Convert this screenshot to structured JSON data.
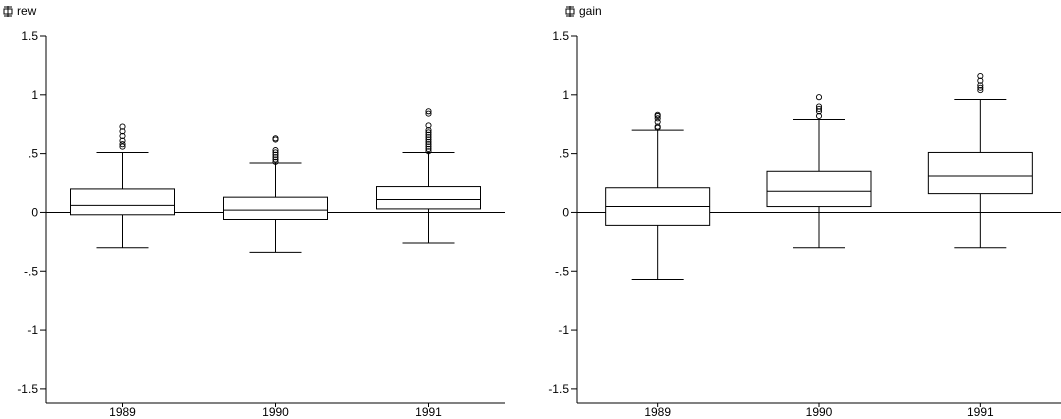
{
  "chart_data": [
    {
      "type": "box",
      "title": "rew",
      "title_icon": "box-plot-legend-icon",
      "categories": [
        "1989",
        "1990",
        "1991"
      ],
      "yticks": [
        "1.5",
        "1",
        ".5",
        "0",
        "-.5",
        "-1",
        "-1.5"
      ],
      "ytick_values": [
        1.5,
        1,
        0.5,
        0,
        -0.5,
        -1,
        -1.5
      ],
      "ylim": [
        -1.62,
        1.5
      ],
      "reference_line": 0,
      "boxes": [
        {
          "category": "1989",
          "whisker_low": -0.3,
          "q1": -0.02,
          "median": 0.06,
          "q3": 0.2,
          "whisker_high": 0.51,
          "outliers": [
            0.56,
            0.58,
            0.61,
            0.65,
            0.69,
            0.73
          ]
        },
        {
          "category": "1990",
          "whisker_low": -0.34,
          "q1": -0.06,
          "median": 0.02,
          "q3": 0.13,
          "whisker_high": 0.42,
          "outliers": [
            0.43,
            0.45,
            0.47,
            0.49,
            0.51,
            0.53,
            0.62,
            0.63
          ]
        },
        {
          "category": "1991",
          "whisker_low": -0.26,
          "q1": 0.03,
          "median": 0.11,
          "q3": 0.22,
          "whisker_high": 0.51,
          "outliers": [
            0.52,
            0.54,
            0.56,
            0.58,
            0.6,
            0.62,
            0.64,
            0.66,
            0.68,
            0.7,
            0.74,
            0.84,
            0.86
          ]
        }
      ]
    },
    {
      "type": "box",
      "title": "gain",
      "title_icon": "box-plot-legend-icon",
      "categories": [
        "1989",
        "1990",
        "1991"
      ],
      "yticks": [
        "1.5",
        "1",
        ".5",
        "0",
        "-.5",
        "-1",
        "-1.5"
      ],
      "ytick_values": [
        1.5,
        1,
        0.5,
        0,
        -0.5,
        -1,
        -1.5
      ],
      "ylim": [
        -1.62,
        1.5
      ],
      "reference_line": 0,
      "boxes": [
        {
          "category": "1989",
          "whisker_low": -0.57,
          "q1": -0.11,
          "median": 0.05,
          "q3": 0.21,
          "whisker_high": 0.7,
          "outliers": [
            0.72,
            0.73,
            0.77,
            0.8,
            0.82,
            0.83
          ]
        },
        {
          "category": "1990",
          "whisker_low": -0.3,
          "q1": 0.05,
          "median": 0.18,
          "q3": 0.35,
          "whisker_high": 0.79,
          "outliers": [
            0.82,
            0.86,
            0.88,
            0.9,
            0.98
          ]
        },
        {
          "category": "1991",
          "whisker_low": -0.3,
          "q1": 0.16,
          "median": 0.31,
          "q3": 0.51,
          "whisker_high": 0.96,
          "outliers": [
            1.04,
            1.06,
            1.08,
            1.12,
            1.16
          ]
        }
      ]
    }
  ]
}
